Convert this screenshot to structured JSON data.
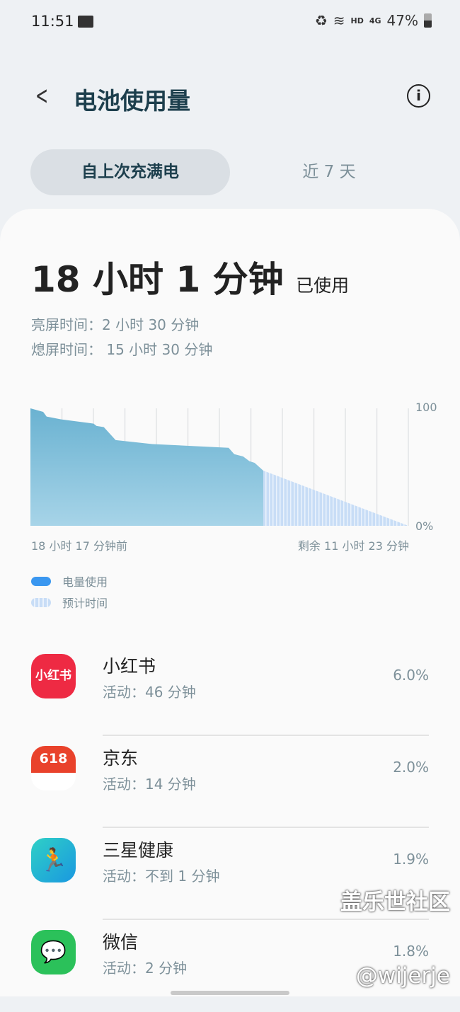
{
  "status_bar": {
    "time": "11:51",
    "network": "HD",
    "signal": "4G",
    "battery": "47%"
  },
  "header": {
    "title": "电池使用量",
    "back_icon": "chevron-left-icon",
    "info_icon": "info-icon"
  },
  "tabs": [
    {
      "label": "自上次充满电",
      "active": true
    },
    {
      "label": "近 7 天",
      "active": false
    }
  ],
  "summary": {
    "total_num1": "18",
    "total_unit1": "小时",
    "total_num2": "1",
    "total_unit2": "分钟",
    "used_suffix": "已使用",
    "screen_on": "亮屏时间：2 小时 30 分钟",
    "screen_off": "熄屏时间： 15 小时 30 分钟"
  },
  "chart_data": {
    "type": "area",
    "x_unit": "hours since full charge",
    "y_ticks": [
      "100",
      "0%"
    ],
    "ylim": [
      0,
      100
    ],
    "x_start_label": "18 小时 17 分钟前",
    "x_end_label": "剩余 11 小时 23 分钟",
    "grid": "vertical",
    "colors": {
      "usage": "#6fb5d3",
      "projected": "#c8ddf6"
    },
    "series": [
      {
        "name": "电量使用",
        "points": [
          [
            0,
            100
          ],
          [
            1.0,
            97
          ],
          [
            1.27,
            93
          ],
          [
            2.42,
            90.6
          ],
          [
            4.96,
            87
          ],
          [
            5.19,
            85
          ],
          [
            5.76,
            84
          ],
          [
            6.69,
            73
          ],
          [
            9.57,
            69.6
          ],
          [
            15.56,
            66.4
          ],
          [
            16.0,
            61
          ],
          [
            16.7,
            59
          ],
          [
            17.2,
            55
          ],
          [
            17.6,
            53.6
          ],
          [
            18.28,
            47
          ]
        ]
      },
      {
        "name": "预计时间",
        "points": [
          [
            18.28,
            47
          ],
          [
            29.67,
            0
          ]
        ]
      }
    ]
  },
  "legend": [
    {
      "label": "电量使用",
      "color": "#3a97f0"
    },
    {
      "label": "预计时间",
      "color": "#c8ddf6"
    }
  ],
  "apps": [
    {
      "name": "小红书",
      "activity": "活动：46 分钟",
      "percent": "6.0%",
      "icon_text": "小红书",
      "color": "#ee2a43"
    },
    {
      "name": "京东",
      "activity": "活动：14 分钟",
      "percent": "2.0%",
      "icon_text": "618",
      "color": "#e9422b"
    },
    {
      "name": "三星健康",
      "activity": "活动：不到 1 分钟",
      "percent": "1.9%",
      "icon_text": "",
      "color": "#1fb4d4"
    },
    {
      "name": "微信",
      "activity": "活动：2 分钟",
      "percent": "1.8%",
      "icon_text": "",
      "color": "#2bc15a"
    }
  ],
  "watermark": {
    "line1": "盖乐世社区",
    "line2": "@wijerje"
  }
}
